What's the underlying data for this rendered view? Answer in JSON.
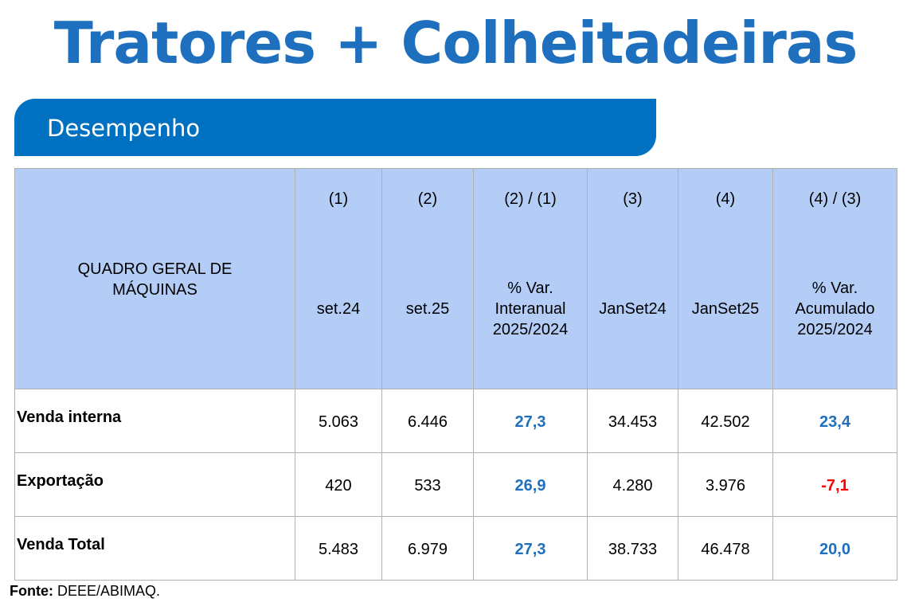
{
  "title": "Tratores + Colheitadeiras",
  "section": "Desempenho",
  "table": {
    "headers": [
      {
        "num": "",
        "label": "QUADRO GERAL DE MÁQUINAS"
      },
      {
        "num": "(1)",
        "label": "set.24"
      },
      {
        "num": "(2)",
        "label": "set.25"
      },
      {
        "num": "(2) / (1)",
        "label": "% Var. Interanual 2025/2024"
      },
      {
        "num": "(3)",
        "label": "JanSet24"
      },
      {
        "num": "(4)",
        "label": "JanSet25"
      },
      {
        "num": "(4) / (3)",
        "label": "% Var. Acumulado 2025/2024"
      }
    ],
    "rows": [
      {
        "label": "Venda interna",
        "values": [
          "5.063",
          "6.446",
          "27,3",
          "34.453",
          "42.502",
          "23,4"
        ]
      },
      {
        "label": "Exportação",
        "values": [
          "420",
          "533",
          "26,9",
          "4.280",
          "3.976",
          "-7,1"
        ]
      },
      {
        "label": "Venda Total",
        "values": [
          "5.483",
          "6.979",
          "27,3",
          "38.733",
          "46.478",
          "20,0"
        ]
      }
    ]
  },
  "source": {
    "label": "Fonte:",
    "value": " DEEE/ABIMAQ."
  },
  "colors": {
    "accent": "#0070c0",
    "header_bg": "#b4cdf7",
    "positive": "#1f6fbd",
    "negative": "#ff0000"
  }
}
